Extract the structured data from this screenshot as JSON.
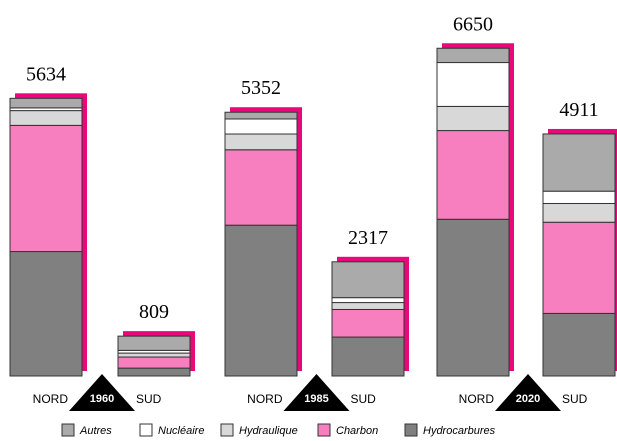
{
  "chart_data": {
    "type": "stacked-bar",
    "groups": [
      "1960",
      "1985",
      "2020"
    ],
    "categories": [
      "NORD",
      "SUD",
      "NORD",
      "SUD",
      "NORD",
      "SUD"
    ],
    "series": [
      {
        "name": "Hydrocarbures",
        "color": "#808080",
        "values": [
          2525,
          160,
          3060,
          790,
          3180,
          1270
        ]
      },
      {
        "name": "Charbon",
        "color": "#f77fbf",
        "values": [
          2560,
          225,
          1530,
          560,
          1800,
          1850
        ]
      },
      {
        "name": "Hydraulique",
        "color": "#d8d8d8",
        "values": [
          300,
          80,
          320,
          140,
          490,
          380
        ]
      },
      {
        "name": "Nucléaire",
        "color": "#ffffff",
        "values": [
          55,
          55,
          305,
          100,
          890,
          250
        ]
      },
      {
        "name": "Autres",
        "color": "#aaaaaa",
        "values": [
          194,
          289,
          137,
          727,
          290,
          1161
        ]
      }
    ],
    "totals": [
      5634,
      809,
      5352,
      2317,
      6650,
      4911
    ],
    "totals_color": "#e8087a",
    "legend_order": [
      4,
      3,
      2,
      1,
      0
    ],
    "ylim": [
      0,
      7000
    ]
  }
}
